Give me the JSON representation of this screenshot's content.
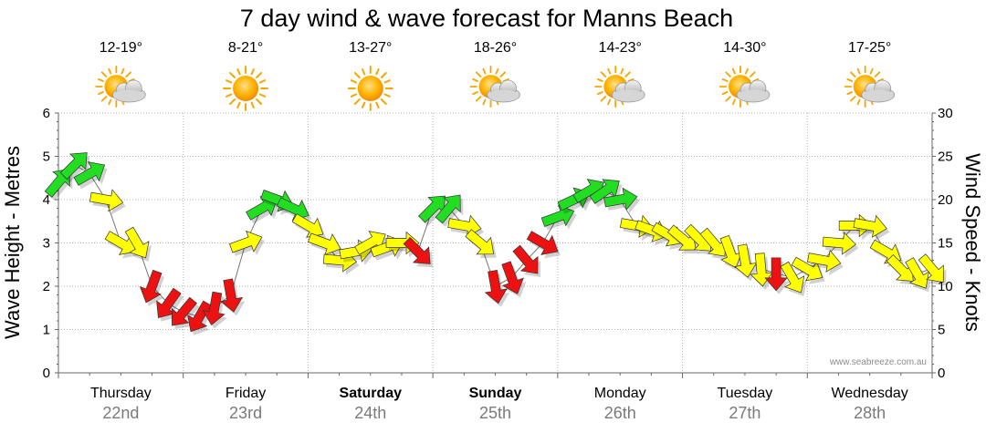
{
  "chart_data": {
    "type": "line",
    "title": "7 day wind & wave forecast for Manns Beach",
    "ylabel": "Wave Height - Metres",
    "y2label": "Wind Speed - Knots",
    "ylim": [
      0,
      6
    ],
    "y2lim": [
      0,
      30
    ],
    "y_ticks": [
      "0",
      "1",
      "2",
      "3",
      "4",
      "5",
      "6"
    ],
    "y2_ticks": [
      "0",
      "5",
      "10",
      "15",
      "20",
      "25",
      "30"
    ],
    "grid": true,
    "x_unit": "days",
    "days": [
      {
        "name": "Thursday",
        "date": "22nd",
        "temp": "12-19°",
        "weather": "partly-cloudy",
        "bold": false
      },
      {
        "name": "Friday",
        "date": "23rd",
        "temp": "8-21°",
        "weather": "sunny",
        "bold": false
      },
      {
        "name": "Saturday",
        "date": "24th",
        "temp": "13-27°",
        "weather": "sunny",
        "bold": true
      },
      {
        "name": "Sunday",
        "date": "25th",
        "temp": "18-26°",
        "weather": "partly-cloudy",
        "bold": true
      },
      {
        "name": "Monday",
        "date": "26th",
        "temp": "14-23°",
        "weather": "partly-cloudy",
        "bold": false
      },
      {
        "name": "Tuesday",
        "date": "27th",
        "temp": "14-30°",
        "weather": "partly-cloudy",
        "bold": false
      },
      {
        "name": "Wednesday",
        "date": "28th",
        "temp": "17-25°",
        "weather": "partly-cloudy",
        "bold": false
      }
    ],
    "series": [
      {
        "name": "Wind",
        "x": [
          0.0,
          0.13,
          0.25,
          0.38,
          0.5,
          0.63,
          0.75,
          0.88,
          1.0,
          1.13,
          1.25,
          1.38,
          1.5,
          1.63,
          1.75,
          1.88,
          2.0,
          2.13,
          2.25,
          2.38,
          2.5,
          2.63,
          2.75,
          2.88,
          3.0,
          3.13,
          3.25,
          3.38,
          3.5,
          3.63,
          3.75,
          3.88,
          4.0,
          4.13,
          4.25,
          4.38,
          4.5,
          4.63,
          4.75,
          4.88,
          5.0,
          5.13,
          5.25,
          5.38,
          5.5,
          5.63,
          5.75,
          5.88,
          6.0,
          6.13,
          6.25,
          6.38,
          6.5,
          6.63,
          6.75,
          6.88,
          7.0
        ],
        "values": [
          22,
          24,
          23,
          20,
          15,
          15,
          10,
          8,
          7,
          6.5,
          7.5,
          9,
          15,
          19,
          20,
          19,
          17,
          15,
          13,
          14,
          15,
          14.5,
          15,
          14,
          19,
          19,
          17,
          15,
          10,
          11,
          13,
          15,
          18,
          20,
          21,
          21,
          20,
          17,
          16.5,
          16,
          15.5,
          15.5,
          15,
          14,
          13,
          12,
          11.5,
          11,
          12,
          13,
          15,
          17,
          17,
          14,
          12,
          11.5,
          12
        ],
        "dir_deg": [
          40,
          45,
          60,
          100,
          120,
          150,
          200,
          215,
          220,
          210,
          190,
          170,
          70,
          60,
          110,
          115,
          120,
          110,
          95,
          80,
          60,
          70,
          90,
          135,
          45,
          40,
          100,
          130,
          170,
          160,
          140,
          120,
          70,
          65,
          60,
          55,
          80,
          100,
          110,
          120,
          130,
          135,
          140,
          160,
          170,
          175,
          180,
          150,
          120,
          100,
          95,
          90,
          100,
          120,
          135,
          150,
          140
        ],
        "color": [
          "green",
          "green",
          "green",
          "yellow",
          "yellow",
          "yellow",
          "red",
          "red",
          "red",
          "red",
          "red",
          "red",
          "yellow",
          "green",
          "green",
          "green",
          "yellow",
          "yellow",
          "yellow",
          "yellow",
          "yellow",
          "yellow",
          "yellow",
          "red",
          "green",
          "green",
          "yellow",
          "yellow",
          "red",
          "red",
          "red",
          "red",
          "green",
          "green",
          "green",
          "green",
          "green",
          "yellow",
          "yellow",
          "yellow",
          "yellow",
          "yellow",
          "yellow",
          "yellow",
          "yellow",
          "yellow",
          "red",
          "yellow",
          "yellow",
          "yellow",
          "yellow",
          "yellow",
          "yellow",
          "yellow",
          "yellow",
          "yellow",
          "yellow"
        ]
      }
    ]
  },
  "watermark": "www.seabreeze.com.au",
  "colors": {
    "green": "#22dd22",
    "yellow": "#ffff00",
    "red": "#ee1111",
    "grid": "#b4b4b4",
    "axis": "#666666",
    "date": "#7a7a7a"
  }
}
